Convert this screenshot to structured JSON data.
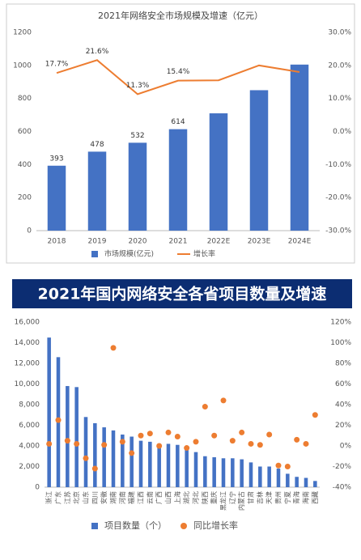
{
  "chart_data": [
    {
      "type": "combo",
      "title": "2021年网络安全市场规模及增速（亿元）",
      "categories": [
        "2018",
        "2019",
        "2020",
        "2021",
        "2022E",
        "2023E",
        "2024E"
      ],
      "series": [
        {
          "name": "市场规模(亿元)",
          "type": "bar",
          "color": "#4472c4",
          "values": [
            393,
            478,
            532,
            614,
            710,
            850,
            1005
          ],
          "value_labels": [
            "393",
            "478",
            "532",
            "614",
            null,
            null,
            null
          ]
        },
        {
          "name": "增长率",
          "type": "line",
          "axis": "y2",
          "color": "#ed7d31",
          "values": [
            17.7,
            21.6,
            11.3,
            15.4,
            15.5,
            20,
            18
          ],
          "value_labels": [
            "17.7%",
            "21.6%",
            "11.3%",
            "15.4%",
            null,
            null,
            null
          ]
        }
      ],
      "ylim": [
        0,
        1200
      ],
      "yticks": [
        0,
        200,
        400,
        600,
        800,
        1000,
        1200
      ],
      "y2lim": [
        -30,
        30
      ],
      "y2ticks": [
        {
          "value": -30,
          "label": "-30.0%"
        },
        {
          "value": -20,
          "label": "-20.0%"
        },
        {
          "value": -10,
          "label": "-10.0%"
        },
        {
          "value": 0,
          "label": "0.0%"
        },
        {
          "value": 10,
          "label": "10.0%"
        },
        {
          "value": 20,
          "label": "20.0%"
        },
        {
          "value": 30,
          "label": "30.0%"
        }
      ],
      "legend": "bottom"
    },
    {
      "type": "combo",
      "title": "2021年国内网络安全各省项目数量及增速",
      "categories": [
        "浙江",
        "广东",
        "江苏",
        "北京",
        "山东",
        "四川",
        "安徽",
        "湖南",
        "河南",
        "福建",
        "江西",
        "云南",
        "广西",
        "山西",
        "上海",
        "湖北",
        "河北",
        "陕西",
        "重庆",
        "黑龙江",
        "辽宁",
        "内蒙古",
        "甘肃",
        "吉林",
        "天津",
        "贵州",
        "宁夏",
        "青海",
        "海南",
        "西藏"
      ],
      "series": [
        {
          "name": "项目数量（个）",
          "type": "bar",
          "color": "#4472c4",
          "values": [
            14500,
            12600,
            9800,
            9700,
            6800,
            6200,
            5800,
            5500,
            5100,
            4900,
            4500,
            4400,
            4200,
            4200,
            4100,
            3900,
            3400,
            3000,
            2900,
            2800,
            2800,
            2700,
            2400,
            2000,
            2000,
            1800,
            1300,
            1000,
            900,
            600
          ]
        },
        {
          "name": "同比增长率",
          "type": "scatter",
          "axis": "y2",
          "color": "#ed7d31",
          "values": [
            2,
            25,
            5,
            2,
            -12,
            -22,
            1,
            95,
            4,
            -7,
            10,
            12,
            0,
            13,
            9,
            -2,
            4,
            38,
            10,
            44,
            5,
            13,
            2,
            1,
            11,
            -19,
            -20,
            6,
            2,
            30
          ]
        }
      ],
      "ylim": [
        0,
        16000
      ],
      "yticks": [
        0,
        {
          "value": 2000,
          "label": "2,000"
        },
        {
          "value": 4000,
          "label": "4,000"
        },
        {
          "value": 6000,
          "label": "6,000"
        },
        {
          "value": 8000,
          "label": "8,000"
        },
        {
          "value": 10000,
          "label": "10,000"
        },
        {
          "value": 12000,
          "label": "12,000"
        },
        {
          "value": 14000,
          "label": "14,000"
        },
        {
          "value": 16000,
          "label": "16,000"
        }
      ],
      "y2lim": [
        -40,
        120
      ],
      "y2ticks": [
        {
          "value": -40,
          "label": "-40%"
        },
        {
          "value": -20,
          "label": "-20%"
        },
        {
          "value": 0,
          "label": "0%"
        },
        {
          "value": 20,
          "label": "20%"
        },
        {
          "value": 40,
          "label": "40%"
        },
        {
          "value": 60,
          "label": "60%"
        },
        {
          "value": 80,
          "label": "80%"
        },
        {
          "value": 100,
          "label": "100%"
        },
        {
          "value": 120,
          "label": "120%"
        }
      ],
      "legend": "bottom"
    }
  ]
}
